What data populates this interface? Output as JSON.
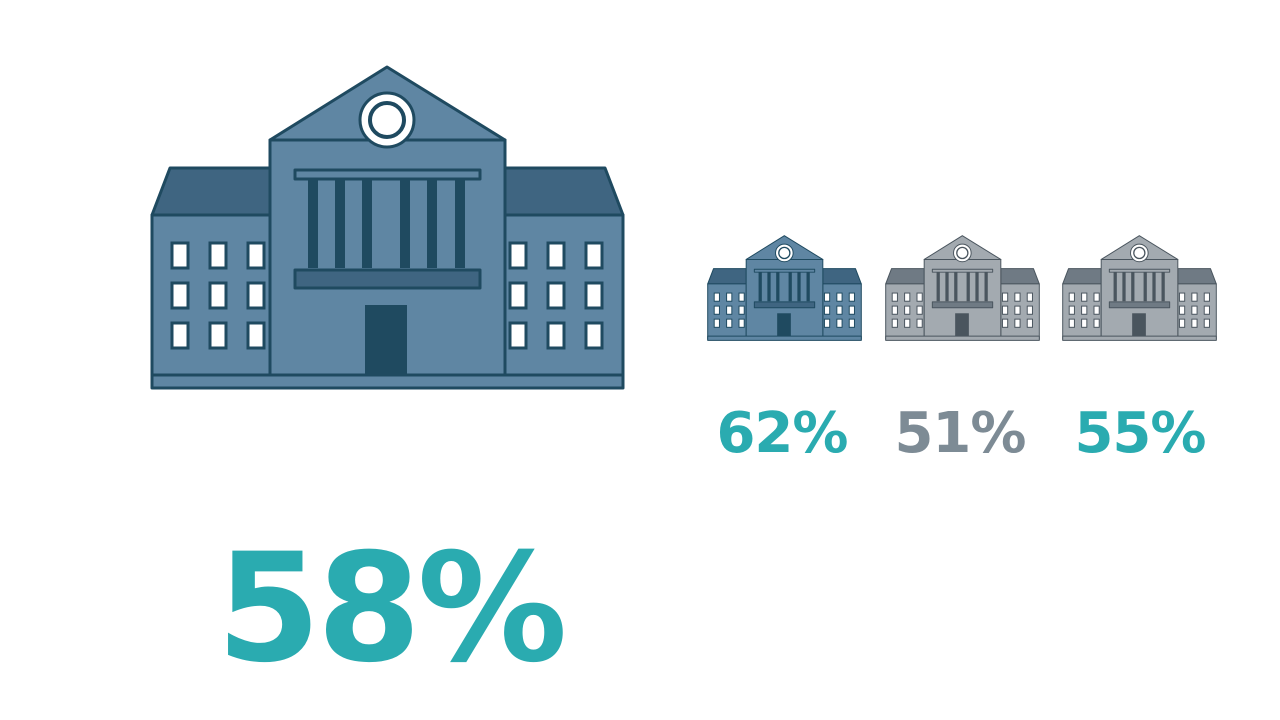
{
  "main": {
    "value": "58%"
  },
  "items": [
    {
      "value": "62%"
    },
    {
      "value": "51%"
    },
    {
      "value": "55%"
    }
  ]
}
